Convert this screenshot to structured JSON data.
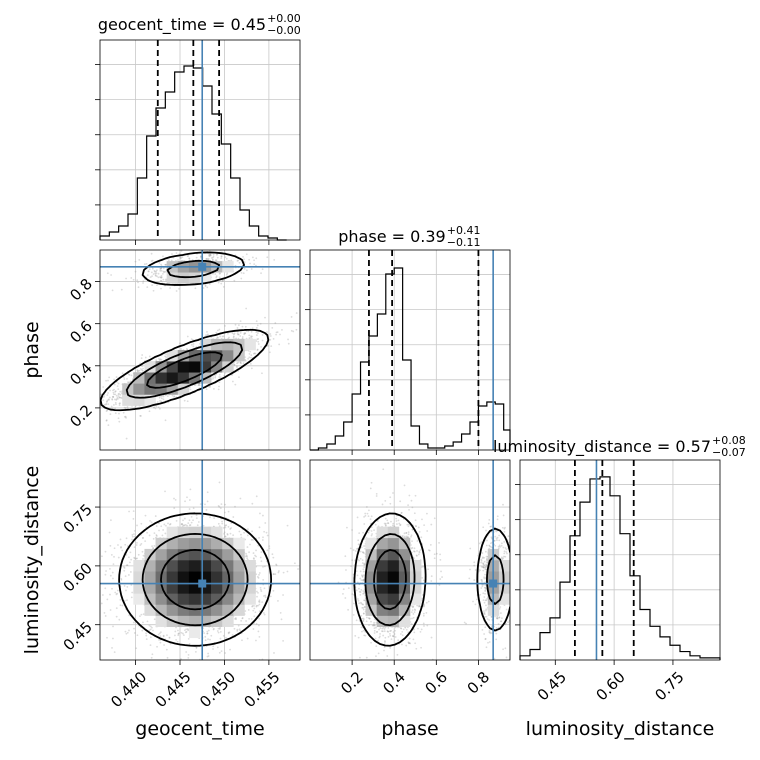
{
  "chart_data": {
    "type": "corner",
    "parameters": [
      "geocent_time",
      "phase",
      "luminosity_distance"
    ],
    "truth": {
      "geocent_time": 0.4475,
      "phase": 0.87,
      "luminosity_distance": 0.555
    },
    "titles": [
      {
        "prefix": "geocent_time = 0.45",
        "plus": "+0.00",
        "minus": "−0.00"
      },
      {
        "prefix": "phase = 0.39",
        "plus": "+0.41",
        "minus": "−0.11"
      },
      {
        "prefix": "luminosity_distance = 0.57",
        "plus": "+0.08",
        "minus": "−0.07"
      }
    ],
    "axes": {
      "geocent_time": {
        "range": [
          0.436,
          0.4585
        ],
        "ticks": [
          0.44,
          0.445,
          0.45,
          0.455
        ],
        "tick_labels": [
          "0.440",
          "0.445",
          "0.450",
          "0.455"
        ]
      },
      "phase": {
        "range": [
          0.0,
          0.95
        ],
        "ticks": [
          0.2,
          0.4,
          0.6,
          0.8
        ],
        "tick_labels": [
          "0.2",
          "0.4",
          "0.6",
          "0.8"
        ]
      },
      "luminosity_distance": {
        "range": [
          0.36,
          0.87
        ],
        "ticks": [
          0.45,
          0.6,
          0.75
        ],
        "tick_labels": [
          "0.45",
          "0.60",
          "0.75"
        ]
      }
    },
    "histograms": {
      "geocent_time": {
        "bins": [
          0.436,
          0.43705,
          0.4381,
          0.43915,
          0.4402,
          0.44125,
          0.4423,
          0.44335,
          0.4444,
          0.44545,
          0.4465,
          0.44755,
          0.4486,
          0.44965,
          0.4507,
          0.45175,
          0.4528,
          0.45385,
          0.4549,
          0.45595,
          0.457
        ],
        "values": [
          0.02,
          0.04,
          0.07,
          0.13,
          0.31,
          0.52,
          0.66,
          0.74,
          0.84,
          0.87,
          0.86,
          0.77,
          0.63,
          0.48,
          0.31,
          0.15,
          0.07,
          0.02,
          0.01,
          0.0
        ],
        "quantiles": [
          0.4425,
          0.4465,
          0.4494
        ],
        "ymax": 1.0
      },
      "phase": {
        "bins": [
          0.0,
          0.04,
          0.08,
          0.12,
          0.16,
          0.2,
          0.24,
          0.28,
          0.32,
          0.36,
          0.4,
          0.44,
          0.48,
          0.52,
          0.56,
          0.6,
          0.64,
          0.68,
          0.72,
          0.76,
          0.8,
          0.84,
          0.88,
          0.92,
          0.95
        ],
        "values": [
          0.0,
          0.01,
          0.03,
          0.07,
          0.14,
          0.28,
          0.44,
          0.57,
          0.68,
          0.88,
          0.91,
          0.45,
          0.12,
          0.03,
          0.01,
          0.01,
          0.02,
          0.04,
          0.08,
          0.14,
          0.22,
          0.24,
          0.23,
          0.1
        ],
        "quantiles": [
          0.28,
          0.39,
          0.8
        ],
        "ymax": 1.0
      },
      "luminosity_distance": {
        "bins": [
          0.36,
          0.3855,
          0.411,
          0.4365,
          0.462,
          0.4875,
          0.513,
          0.5385,
          0.564,
          0.5895,
          0.615,
          0.6405,
          0.666,
          0.6915,
          0.717,
          0.7425,
          0.768,
          0.7935,
          0.819,
          0.8445,
          0.87
        ],
        "values": [
          0.02,
          0.05,
          0.13,
          0.2,
          0.37,
          0.59,
          0.75,
          0.86,
          0.87,
          0.78,
          0.6,
          0.4,
          0.24,
          0.16,
          0.11,
          0.07,
          0.04,
          0.02,
          0.01,
          0.01
        ],
        "quantiles": [
          0.5,
          0.57,
          0.65
        ],
        "ymax": 0.95
      }
    },
    "pairs": [
      {
        "x": "geocent_time",
        "y": "phase",
        "modes": [
          {
            "cx": 0.4455,
            "cy": 0.38,
            "sx": 0.0042,
            "sy": 0.085,
            "rho": 0.78,
            "weight": 0.8
          },
          {
            "cx": 0.4465,
            "cy": 0.86,
            "sx": 0.003,
            "sy": 0.04,
            "rho": 0.3,
            "weight": 0.2
          }
        ]
      },
      {
        "x": "geocent_time",
        "y": "luminosity_distance",
        "modes": [
          {
            "cx": 0.4467,
            "cy": 0.565,
            "sx": 0.0038,
            "sy": 0.075,
            "rho": 0.0,
            "weight": 1.0
          }
        ]
      },
      {
        "x": "phase",
        "y": "luminosity_distance",
        "modes": [
          {
            "cx": 0.38,
            "cy": 0.565,
            "sx": 0.075,
            "sy": 0.075,
            "rho": 0.05,
            "weight": 0.8
          },
          {
            "cx": 0.88,
            "cy": 0.565,
            "sx": 0.045,
            "sy": 0.07,
            "rho": 0.0,
            "weight": 0.2
          }
        ]
      }
    ],
    "colors": {
      "truth": "#4682b4",
      "hist": "#000000",
      "grid": "#c8c8c8",
      "points": "#9a9a9a"
    },
    "grid": true
  }
}
